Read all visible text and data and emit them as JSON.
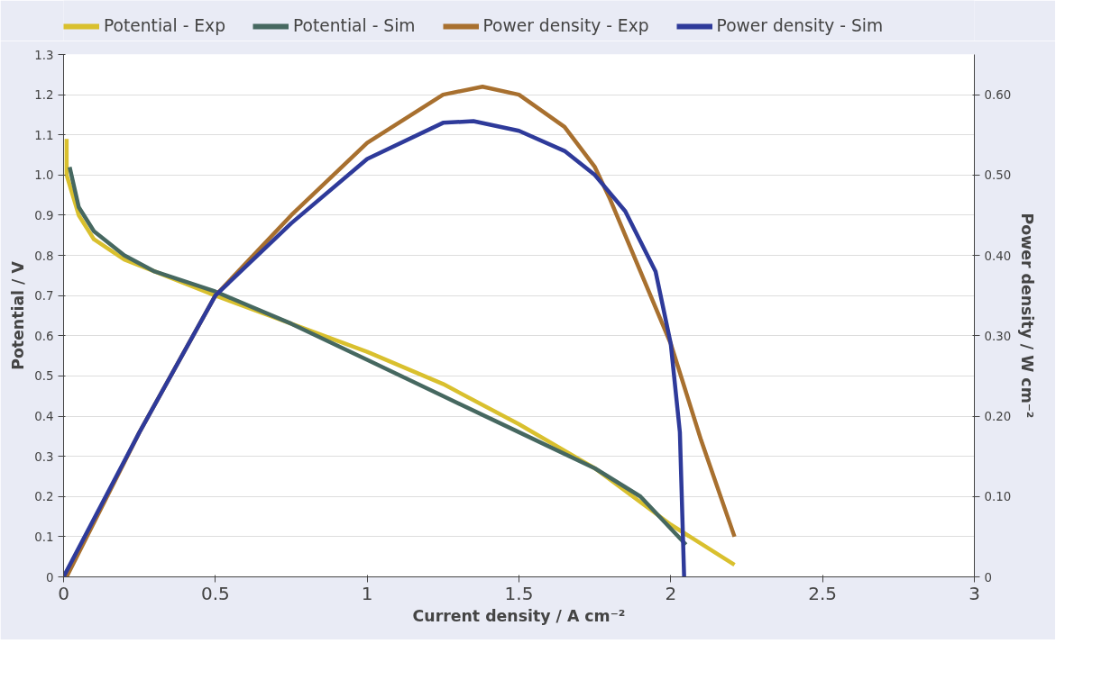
{
  "chart_data": {
    "type": "line",
    "xlabel": "Current density / A cm⁻²",
    "ylabel": "Potential / V",
    "y2label": "Power density / W cm⁻²",
    "xlim": [
      0,
      3
    ],
    "xticks": [
      0,
      0.5,
      1,
      1.5,
      2,
      2.5,
      3
    ],
    "ylim": [
      0,
      1.3
    ],
    "yticks": [
      0,
      0.1,
      0.2,
      0.3,
      0.4,
      0.5,
      0.6,
      0.7,
      0.8,
      0.9,
      {
        "value": 1.0,
        "label": "1.0"
      },
      1.1,
      1.2,
      1.3
    ],
    "y2lim": [
      0,
      0.65
    ],
    "y2ticks": [
      0,
      {
        "value": 0.1,
        "label": "0.10"
      },
      {
        "value": 0.2,
        "label": "0.20"
      },
      {
        "value": 0.3,
        "label": "0.30"
      },
      {
        "value": 0.4,
        "label": "0.40"
      },
      {
        "value": 0.5,
        "label": "0.50"
      },
      {
        "value": 0.6,
        "label": "0.60"
      }
    ],
    "grid": "y",
    "legend": "top",
    "line_style": "solid",
    "series": [
      {
        "name": "Potential - Exp",
        "color": "#d9c02e",
        "x": [
          0.01,
          0.01,
          0.05,
          0.1,
          0.2,
          0.3,
          0.5,
          0.75,
          1,
          1.25,
          1.5,
          1.75,
          2,
          2.21
        ],
        "values": [
          1.09,
          1.0,
          0.9,
          0.84,
          0.79,
          0.76,
          0.7,
          0.63,
          0.56,
          0.48,
          0.38,
          0.27,
          0.13,
          0.03
        ]
      },
      {
        "name": "Potential - Sim",
        "color": "#466860",
        "x": [
          0.02,
          0.05,
          0.1,
          0.2,
          0.3,
          0.5,
          0.75,
          1,
          1.25,
          1.5,
          1.75,
          1.9,
          2.05
        ],
        "values": [
          1.02,
          0.92,
          0.86,
          0.8,
          0.76,
          0.71,
          0.63,
          0.54,
          0.45,
          0.36,
          0.27,
          0.2,
          0.08
        ]
      },
      {
        "name": "Power density - Exp",
        "color": "#a8702f",
        "axis": "y2",
        "x": [
          0.01,
          0.25,
          0.5,
          0.75,
          1,
          1.25,
          1.38,
          1.5,
          1.65,
          1.75,
          1.8,
          1.9,
          2,
          2.1,
          2.21
        ],
        "values": [
          0,
          0.18,
          0.35,
          0.45,
          0.54,
          0.6,
          0.61,
          0.6,
          0.56,
          0.51,
          0.47,
          0.38,
          0.29,
          0.17,
          0.05
        ]
      },
      {
        "name": "Power density - Sim",
        "color": "#2e3a9a",
        "axis": "y2",
        "x": [
          0,
          0.25,
          0.5,
          0.75,
          1,
          1.25,
          1.35,
          1.5,
          1.65,
          1.75,
          1.85,
          1.95,
          2,
          2.03,
          2.044
        ],
        "values": [
          0,
          0.18,
          0.35,
          0.44,
          0.52,
          0.565,
          0.567,
          0.555,
          0.53,
          0.5,
          0.455,
          0.38,
          0.29,
          0.18,
          0
        ]
      }
    ]
  }
}
